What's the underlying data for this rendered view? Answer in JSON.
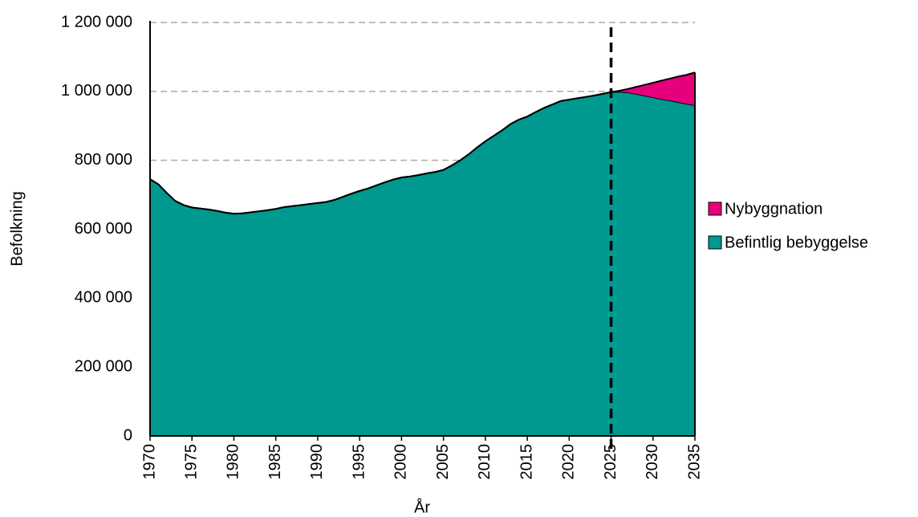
{
  "chart_data": {
    "type": "stacked_area",
    "xlabel": "År",
    "ylabel": "Befolkning",
    "x": [
      1970,
      1971,
      1972,
      1973,
      1974,
      1975,
      1976,
      1977,
      1978,
      1979,
      1980,
      1981,
      1982,
      1983,
      1984,
      1985,
      1986,
      1987,
      1988,
      1989,
      1990,
      1991,
      1992,
      1993,
      1994,
      1995,
      1996,
      1997,
      1998,
      1999,
      2000,
      2001,
      2002,
      2003,
      2004,
      2005,
      2006,
      2007,
      2008,
      2009,
      2010,
      2011,
      2012,
      2013,
      2014,
      2015,
      2016,
      2017,
      2018,
      2019,
      2020,
      2021,
      2022,
      2023,
      2024,
      2025,
      2026,
      2027,
      2028,
      2029,
      2030,
      2031,
      2032,
      2033,
      2034,
      2035
    ],
    "series": [
      {
        "name": "Befintlig bebyggelse",
        "color": "#009990",
        "values": [
          745000,
          730000,
          705000,
          682000,
          670000,
          663000,
          660000,
          657000,
          653000,
          648000,
          645000,
          646000,
          649000,
          652000,
          655000,
          659000,
          664000,
          667000,
          670000,
          673000,
          676000,
          679000,
          685000,
          694000,
          703000,
          711000,
          718000,
          727000,
          736000,
          744000,
          750000,
          753000,
          757000,
          762000,
          766000,
          772000,
          785000,
          800000,
          817000,
          837000,
          855000,
          871000,
          887000,
          905000,
          918000,
          927000,
          940000,
          952000,
          962000,
          972000,
          976000,
          980000,
          984000,
          988000,
          993000,
          998000,
          999000,
          997000,
          993000,
          988000,
          983000,
          978000,
          974000,
          969000,
          964000,
          960000
        ]
      },
      {
        "name": "Nybyggnation",
        "color": "#e6007e",
        "values": [
          0,
          0,
          0,
          0,
          0,
          0,
          0,
          0,
          0,
          0,
          0,
          0,
          0,
          0,
          0,
          0,
          0,
          0,
          0,
          0,
          0,
          0,
          0,
          0,
          0,
          0,
          0,
          0,
          0,
          0,
          0,
          0,
          0,
          0,
          0,
          0,
          0,
          0,
          0,
          0,
          0,
          0,
          0,
          0,
          0,
          0,
          0,
          0,
          0,
          0,
          0,
          0,
          0,
          0,
          0,
          0,
          3000,
          10000,
          20000,
          31000,
          42000,
          53000,
          63000,
          74000,
          84000,
          95000
        ]
      }
    ],
    "xlim": [
      1970,
      2035
    ],
    "xticks": [
      1970,
      1975,
      1980,
      1985,
      1990,
      1995,
      2000,
      2005,
      2010,
      2015,
      2020,
      2025,
      2030,
      2035
    ],
    "ylim": [
      0,
      1200000
    ],
    "yticks": [
      0,
      {
        "value": 200000,
        "label": "200 000"
      },
      {
        "value": 400000,
        "label": "400 000"
      },
      {
        "value": 600000,
        "label": "600 000"
      },
      {
        "value": 800000,
        "label": "800 000"
      },
      {
        "value": 1000000,
        "label": "1 000 000"
      },
      {
        "value": 1200000,
        "label": "1 200 000"
      }
    ],
    "grid": true,
    "vline_x": 2025,
    "legend": "right"
  }
}
